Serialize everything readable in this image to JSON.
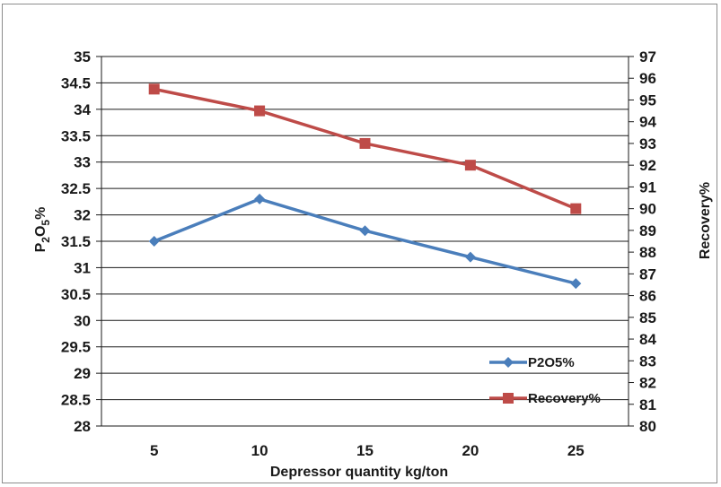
{
  "chart_data": {
    "type": "line",
    "categories": [
      "5",
      "10",
      "15",
      "20",
      "25"
    ],
    "xlabel": "Depressor quantity kg/ton",
    "ylabel": {
      "main": "P",
      "sub1": "2",
      "mid": "O",
      "sub2": "5",
      "end": "%"
    },
    "y2label": "Recovery%",
    "ylim": [
      28,
      35
    ],
    "y_ticks": [
      "28",
      "28.5",
      "29",
      "29.5",
      "30",
      "30.5",
      "31",
      "31.5",
      "32",
      "32.5",
      "33",
      "33.5",
      "34",
      "34.5",
      "35"
    ],
    "y2lim": [
      80,
      97
    ],
    "y2_ticks": [
      "80",
      "81",
      "82",
      "83",
      "84",
      "85",
      "86",
      "87",
      "88",
      "89",
      "90",
      "91",
      "92",
      "93",
      "94",
      "95",
      "96",
      "97"
    ],
    "grid": true,
    "legend_position": "bottom-right",
    "series": [
      {
        "name": "P2O5%",
        "axis": "left",
        "values": [
          31.5,
          32.3,
          31.7,
          31.2,
          30.7
        ],
        "color": "#4a7ebb",
        "marker": "diamond"
      },
      {
        "name": "Recovery%",
        "axis": "right",
        "values": [
          95.5,
          94.5,
          93.0,
          92.0,
          90.0
        ],
        "color": "#be4b48",
        "marker": "square"
      }
    ]
  }
}
